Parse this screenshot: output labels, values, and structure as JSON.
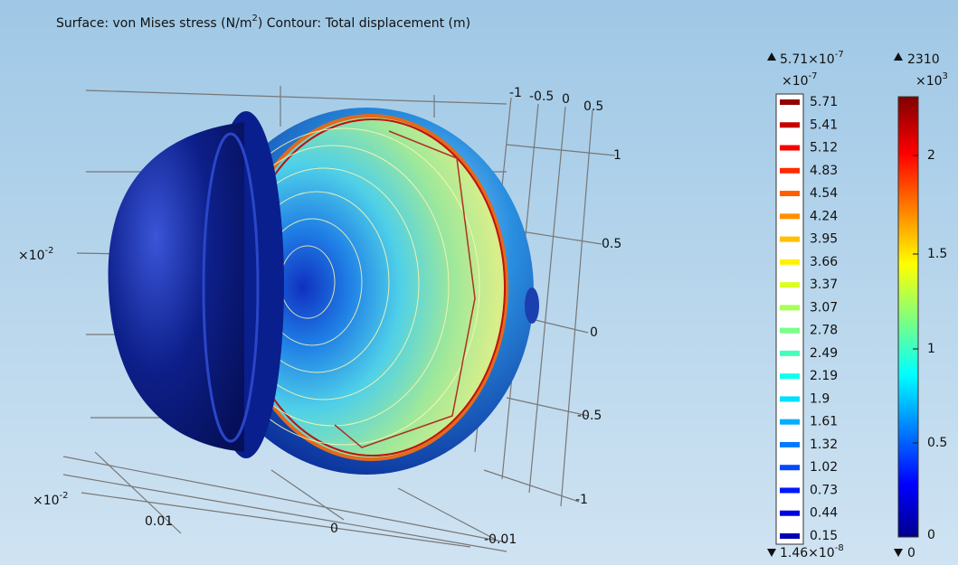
{
  "title": {
    "text_before": "Surface: von Mises stress (N/m",
    "superscript": "2",
    "text_after": ")  Contour: Total displacement (m)"
  },
  "axes": {
    "top_ticks": [
      "-1",
      "-0.5",
      "0",
      "0.5"
    ],
    "right_ticks": [
      "1",
      "0.5",
      "0",
      "-0.5",
      "-1"
    ],
    "bottom_ticks": [
      "0.01",
      "0",
      "-0.01"
    ],
    "scale_labels": [
      {
        "base": "×10",
        "exponent": "-2"
      },
      {
        "base": "×10",
        "exponent": "-2"
      }
    ]
  },
  "contour_legend": {
    "max": {
      "base": "5.71×10",
      "exponent": "-7"
    },
    "multiplier": {
      "base": "×10",
      "exponent": "-7"
    },
    "levels": [
      5.71,
      5.41,
      5.12,
      4.83,
      4.54,
      4.24,
      3.95,
      3.66,
      3.37,
      3.07,
      2.78,
      2.49,
      2.19,
      1.9,
      1.61,
      1.32,
      1.02,
      0.73,
      0.44,
      0.15
    ],
    "min": {
      "base": "1.46×10",
      "exponent": "-8"
    }
  },
  "surface_legend": {
    "max": "2310",
    "multiplier": {
      "base": "×10",
      "exponent": "3"
    },
    "ticks": [
      2,
      1.5,
      1,
      0.5,
      0
    ],
    "min": "0"
  }
}
